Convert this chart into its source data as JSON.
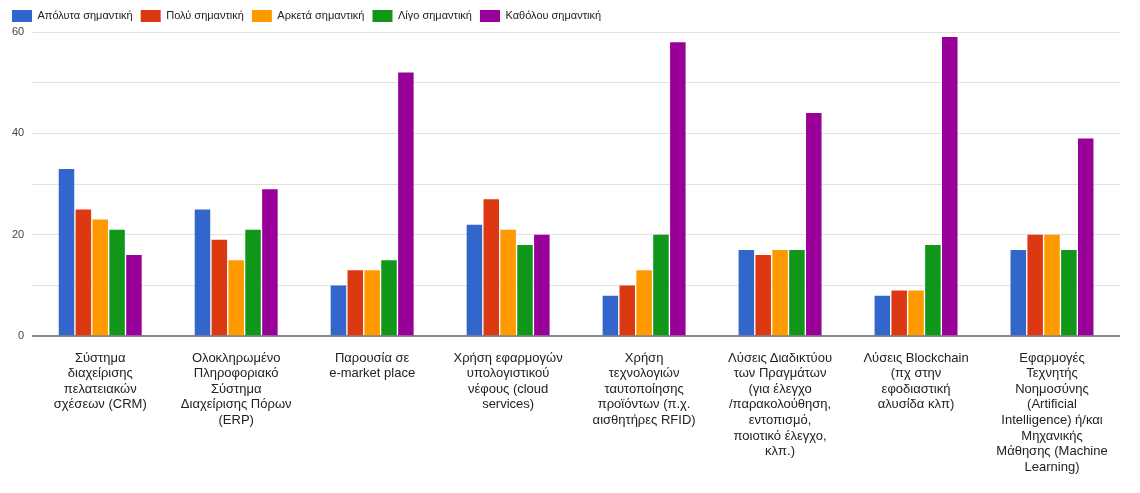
{
  "chart_data": {
    "type": "bar",
    "categories": [
      "Σύστημα διαχείρισης πελατειακών σχέσεων (CRM)",
      "Ολοκληρωμένο Πληροφοριακό Σύστημα Διαχείρισης Πόρων (ERP)",
      "Παρουσία σε e-market place",
      "Χρήση εφαρμογών υπολογιστικού νέφους (cloud services)",
      "Χρήση τεχνολογιών ταυτοποίησης προϊόντων (π.χ. αισθητήρες RFID)",
      "Λύσεις Διαδικτύου των Πραγμάτων (για έλεγχο /παρακολούθηση, εντοπισμό, ποιοτικό έλεγχο, κλπ.)",
      "Λύσεις Blockchain (πχ στην εφοδιαστική αλυσίδα κλπ)",
      "Εφαρμογές Τεχνητής Νοημοσύνης (Artificial Intelligence) ή/και Μηχανικής Μάθησης (Machine Learning)"
    ],
    "series": [
      {
        "name": "Απόλυτα σημαντική",
        "color": "#3366cc",
        "values": [
          33,
          25,
          10,
          22,
          8,
          17,
          8,
          17
        ]
      },
      {
        "name": "Πολύ σημαντική",
        "color": "#dc3912",
        "values": [
          25,
          19,
          13,
          27,
          10,
          16,
          9,
          20
        ]
      },
      {
        "name": "Αρκετά σημαντική",
        "color": "#ff9900",
        "values": [
          23,
          15,
          13,
          21,
          13,
          17,
          9,
          20
        ]
      },
      {
        "name": "Λίγο σημαντική",
        "color": "#109618",
        "values": [
          21,
          21,
          15,
          18,
          20,
          17,
          18,
          17
        ]
      },
      {
        "name": "Καθόλου σημαντική",
        "color": "#990099",
        "values": [
          16,
          29,
          52,
          20,
          58,
          44,
          59,
          39
        ]
      }
    ],
    "ylim": [
      0,
      60
    ],
    "yticks": [
      0,
      {
        "value": 10,
        "label": null
      },
      20,
      {
        "value": 30,
        "label": null
      },
      40,
      {
        "value": 50,
        "label": null
      },
      60
    ],
    "grid": "y",
    "legend": "top left"
  }
}
